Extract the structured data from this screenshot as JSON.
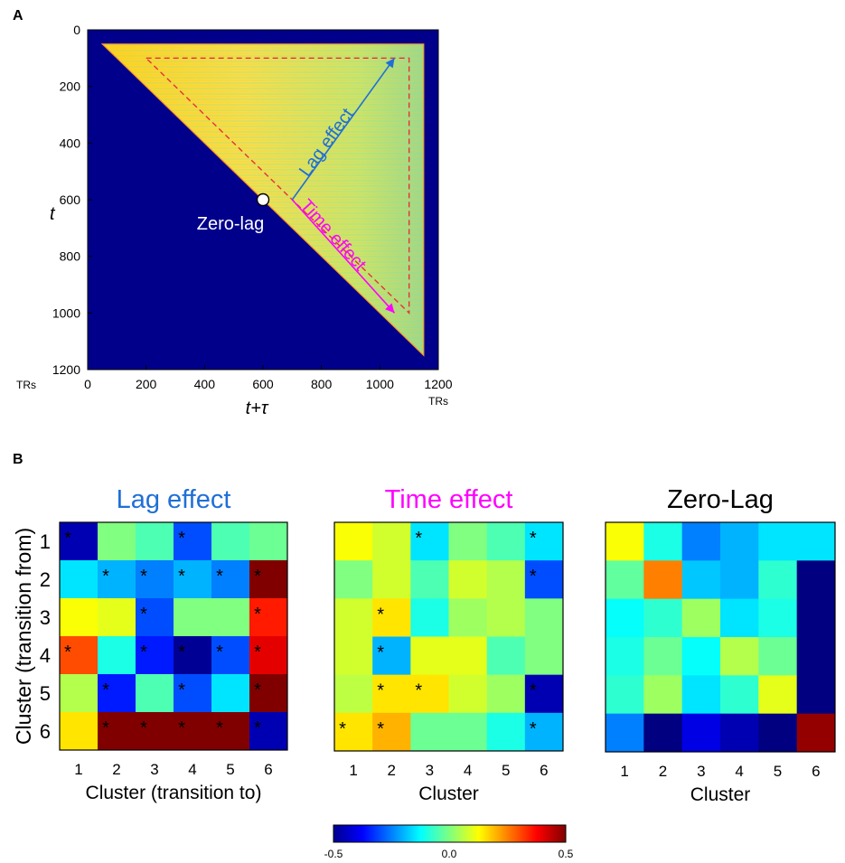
{
  "panel_a": {
    "label": "A",
    "chart_data": {
      "type": "heatmap",
      "description_axes": {
        "ylabel": "t",
        "xlabel": "t+τ"
      },
      "x_ticks": [
        "0",
        "200",
        "400",
        "600",
        "800",
        "1000",
        "1200"
      ],
      "y_ticks": [
        "0",
        "200",
        "400",
        "600",
        "800",
        "1000",
        "1200"
      ],
      "x_unit": "TRs",
      "y_unit": "TRs",
      "xlim": [
        0,
        1200
      ],
      "ylim": [
        0,
        1200
      ],
      "data_region": {
        "t_start": 50,
        "t_end": 1150,
        "t_plus_tau_start": 50,
        "t_plus_tau_end": 1150
      },
      "zero_lag_point": {
        "t": 600,
        "t_plus_tau": 600,
        "label": "Zero-lag"
      },
      "annotations": [
        {
          "text": "Lag effect",
          "color": "#1f6fd6",
          "from": [
            700,
            600
          ],
          "to": [
            1050,
            100
          ]
        },
        {
          "text": "Time effect",
          "color": "#ff00ff",
          "from": [
            700,
            600
          ],
          "to": [
            1050,
            1000
          ]
        }
      ],
      "dashed_triangle": {
        "color": "#e8303a",
        "vertices": [
          [
            200,
            100
          ],
          [
            1100,
            100
          ],
          [
            1100,
            1000
          ]
        ]
      }
    }
  },
  "panel_b": {
    "label": "B",
    "colorbar": {
      "min": -0.5,
      "mid": 0.0,
      "max": 0.5,
      "labels": [
        "-0.5",
        "0.0",
        "0.5"
      ]
    },
    "chart_data": [
      {
        "type": "heatmap",
        "title": "Lag effect",
        "title_color": "#1f6fd6",
        "ylabel": "Cluster (transition from)",
        "xlabel": "Cluster (transition to)",
        "x_ticks": [
          "1",
          "2",
          "3",
          "4",
          "5",
          "6"
        ],
        "y_ticks": [
          "1",
          "2",
          "3",
          "4",
          "5",
          "6"
        ],
        "values": [
          [
            -0.45,
            0.0,
            -0.05,
            -0.3,
            -0.05,
            -0.02
          ],
          [
            -0.15,
            -0.2,
            -0.25,
            -0.2,
            -0.25,
            0.5
          ],
          [
            0.12,
            0.1,
            -0.3,
            0.0,
            0.0,
            0.35
          ],
          [
            0.3,
            -0.1,
            -0.35,
            -0.48,
            -0.3,
            0.4
          ],
          [
            0.05,
            -0.35,
            -0.05,
            -0.3,
            -0.15,
            0.55
          ],
          [
            0.15,
            0.5,
            0.5,
            0.55,
            0.55,
            -0.45
          ]
        ],
        "significant": [
          [
            1,
            0,
            0,
            1,
            0,
            0
          ],
          [
            0,
            1,
            1,
            1,
            1,
            1
          ],
          [
            0,
            0,
            1,
            0,
            0,
            1
          ],
          [
            1,
            0,
            1,
            1,
            1,
            1
          ],
          [
            0,
            1,
            0,
            1,
            0,
            1
          ],
          [
            0,
            1,
            1,
            1,
            1,
            1
          ]
        ],
        "star": "*"
      },
      {
        "type": "heatmap",
        "title": "Time effect",
        "title_color": "#ff00ff",
        "ylabel": "",
        "xlabel": "Cluster",
        "x_ticks": [
          "1",
          "2",
          "3",
          "4",
          "5",
          "6"
        ],
        "y_ticks": [],
        "values": [
          [
            0.12,
            0.08,
            -0.15,
            0.0,
            -0.05,
            -0.15
          ],
          [
            0.0,
            0.08,
            -0.05,
            0.08,
            0.05,
            -0.3
          ],
          [
            0.08,
            0.15,
            -0.1,
            0.03,
            0.05,
            0.0
          ],
          [
            0.08,
            -0.2,
            0.1,
            0.1,
            -0.05,
            0.0
          ],
          [
            0.06,
            0.15,
            0.15,
            0.08,
            0.03,
            -0.45
          ],
          [
            0.15,
            0.2,
            -0.02,
            -0.02,
            -0.1,
            -0.2
          ]
        ],
        "significant": [
          [
            0,
            0,
            1,
            0,
            0,
            1
          ],
          [
            0,
            0,
            0,
            0,
            0,
            1
          ],
          [
            0,
            1,
            0,
            0,
            0,
            0
          ],
          [
            0,
            1,
            0,
            0,
            0,
            0
          ],
          [
            0,
            1,
            1,
            0,
            0,
            1
          ],
          [
            1,
            1,
            0,
            0,
            0,
            1
          ]
        ],
        "star": "*"
      },
      {
        "type": "heatmap",
        "title": "Zero-Lag",
        "title_color": "#000000",
        "ylabel": "",
        "xlabel": "Cluster",
        "x_ticks": [
          "1",
          "2",
          "3",
          "4",
          "5",
          "6"
        ],
        "y_ticks": [],
        "values": [
          [
            0.12,
            -0.1,
            -0.25,
            -0.2,
            -0.15,
            -0.15
          ],
          [
            -0.03,
            0.25,
            -0.18,
            -0.2,
            -0.08,
            -0.5
          ],
          [
            -0.12,
            -0.08,
            0.03,
            -0.15,
            -0.1,
            -0.5
          ],
          [
            -0.1,
            -0.02,
            -0.12,
            0.05,
            -0.02,
            -0.5
          ],
          [
            -0.08,
            0.03,
            -0.15,
            -0.08,
            0.1,
            -0.5
          ],
          [
            -0.25,
            -0.5,
            -0.4,
            -0.45,
            -0.5,
            0.48
          ]
        ],
        "significant": [
          [
            0,
            0,
            0,
            0,
            0,
            0
          ],
          [
            0,
            0,
            0,
            0,
            0,
            0
          ],
          [
            0,
            0,
            0,
            0,
            0,
            0
          ],
          [
            0,
            0,
            0,
            0,
            0,
            0
          ],
          [
            0,
            0,
            0,
            0,
            0,
            0
          ],
          [
            0,
            0,
            0,
            0,
            0,
            0
          ]
        ],
        "star": "*"
      }
    ]
  }
}
